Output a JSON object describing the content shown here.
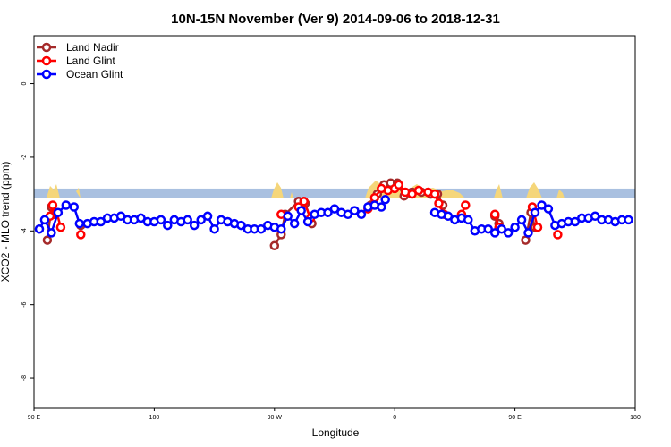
{
  "chart_data": {
    "type": "line",
    "title": "10N-15N November (Ver 9)   2014-09-06 to 2018-12-31",
    "xlabel": "Longitude",
    "ylabel": "XCO2 - MLO trend (ppm)",
    "x_ticks": [
      {
        "value": 0,
        "label": "90 E"
      },
      {
        "value": 90,
        "label": "180"
      },
      {
        "value": 180,
        "label": "90 W"
      },
      {
        "value": 270,
        "label": "0"
      },
      {
        "value": 360,
        "label": "90 E"
      },
      {
        "value": 450,
        "label": "180"
      }
    ],
    "y_ticks": [
      0,
      -2,
      -4,
      -6,
      -8
    ],
    "xlim": [
      0,
      450
    ],
    "ylim": [
      -8.8,
      1.3
    ],
    "band": {
      "ymin": -3.1,
      "ymax": -2.85,
      "color": "#a9c0e0"
    },
    "land_color": "#f5d67a",
    "legend": {
      "placement": "top-left",
      "entries": [
        {
          "label": "Land Nadir",
          "color": "#a52a2a"
        },
        {
          "label": "Land Glint",
          "color": "#ff0000"
        },
        {
          "label": "Ocean Glint",
          "color": "#0000ff"
        }
      ]
    },
    "series": [
      {
        "name": "Land Nadir",
        "color": "#a52a2a",
        "points": [
          [
            10,
            -4.25
          ],
          [
            13,
            -3.35
          ],
          [
            15,
            -3.55
          ],
          [
            35,
            -3.85
          ],
          [
            180,
            -4.4
          ],
          [
            185,
            -4.1
          ],
          [
            188,
            -3.55
          ],
          [
            198,
            -3.2
          ],
          [
            203,
            -3.25
          ],
          [
            208,
            -3.8
          ],
          [
            252,
            -3.3
          ],
          [
            257,
            -3.0
          ],
          [
            262,
            -2.75
          ],
          [
            267,
            -2.7
          ],
          [
            272,
            -2.7
          ],
          [
            277,
            -3.05
          ],
          [
            283,
            -2.95
          ],
          [
            290,
            -2.95
          ],
          [
            297,
            -3.0
          ],
          [
            302,
            -3.0
          ],
          [
            306,
            -3.3
          ],
          [
            345,
            -3.6
          ],
          [
            348,
            -3.8
          ],
          [
            368,
            -4.25
          ],
          [
            372,
            -3.5
          ],
          [
            375,
            -3.9
          ]
        ]
      },
      {
        "name": "Land Glint",
        "color": "#ff0000",
        "points": [
          [
            12,
            -3.6
          ],
          [
            14,
            -3.3
          ],
          [
            17,
            -3.5
          ],
          [
            20,
            -3.9
          ],
          [
            35,
            -4.1
          ],
          [
            185,
            -3.55
          ],
          [
            198,
            -3.35
          ],
          [
            202,
            -3.2
          ],
          [
            207,
            -3.65
          ],
          [
            250,
            -3.4
          ],
          [
            255,
            -3.1
          ],
          [
            260,
            -2.85
          ],
          [
            265,
            -2.9
          ],
          [
            270,
            -2.85
          ],
          [
            273,
            -2.75
          ],
          [
            278,
            -2.95
          ],
          [
            283,
            -3.0
          ],
          [
            288,
            -2.9
          ],
          [
            295,
            -2.95
          ],
          [
            300,
            -3.0
          ],
          [
            303,
            -3.25
          ],
          [
            307,
            -3.55
          ],
          [
            320,
            -3.55
          ],
          [
            323,
            -3.3
          ],
          [
            345,
            -3.55
          ],
          [
            348,
            -3.9
          ],
          [
            373,
            -3.35
          ],
          [
            377,
            -3.9
          ],
          [
            392,
            -4.1
          ]
        ]
      },
      {
        "name": "Ocean Glint",
        "color": "#0000ff",
        "points": [
          [
            4,
            -3.95
          ],
          [
            8,
            -3.7
          ],
          [
            13,
            -4.05
          ],
          [
            18,
            -3.5
          ],
          [
            24,
            -3.3
          ],
          [
            30,
            -3.35
          ],
          [
            34,
            -3.8
          ],
          [
            40,
            -3.8
          ],
          [
            45,
            -3.75
          ],
          [
            50,
            -3.75
          ],
          [
            55,
            -3.65
          ],
          [
            60,
            -3.65
          ],
          [
            65,
            -3.6
          ],
          [
            70,
            -3.7
          ],
          [
            75,
            -3.7
          ],
          [
            80,
            -3.65
          ],
          [
            85,
            -3.75
          ],
          [
            90,
            -3.75
          ],
          [
            95,
            -3.7
          ],
          [
            100,
            -3.85
          ],
          [
            105,
            -3.7
          ],
          [
            110,
            -3.75
          ],
          [
            115,
            -3.7
          ],
          [
            120,
            -3.85
          ],
          [
            125,
            -3.7
          ],
          [
            130,
            -3.6
          ],
          [
            135,
            -3.95
          ],
          [
            140,
            -3.7
          ],
          [
            145,
            -3.75
          ],
          [
            150,
            -3.8
          ],
          [
            155,
            -3.85
          ],
          [
            160,
            -3.95
          ],
          [
            165,
            -3.95
          ],
          [
            170,
            -3.95
          ],
          [
            175,
            -3.85
          ],
          [
            180,
            -3.9
          ],
          [
            185,
            -3.95
          ],
          [
            190,
            -3.6
          ],
          [
            195,
            -3.8
          ],
          [
            200,
            -3.45
          ],
          [
            205,
            -3.75
          ],
          [
            210,
            -3.55
          ],
          [
            215,
            -3.5
          ],
          [
            220,
            -3.5
          ],
          [
            225,
            -3.4
          ],
          [
            230,
            -3.5
          ],
          [
            235,
            -3.55
          ],
          [
            240,
            -3.45
          ],
          [
            245,
            -3.55
          ],
          [
            250,
            -3.35
          ],
          [
            255,
            -3.3
          ],
          [
            260,
            -3.35
          ],
          [
            263,
            -3.15
          ],
          [
            300,
            -3.5
          ],
          [
            305,
            -3.55
          ],
          [
            310,
            -3.6
          ],
          [
            315,
            -3.7
          ],
          [
            320,
            -3.65
          ],
          [
            325,
            -3.7
          ],
          [
            330,
            -4.0
          ],
          [
            335,
            -3.95
          ],
          [
            340,
            -3.95
          ],
          [
            345,
            -4.05
          ],
          [
            350,
            -3.95
          ],
          [
            355,
            -4.05
          ],
          [
            360,
            -3.9
          ],
          [
            365,
            -3.7
          ],
          [
            370,
            -4.05
          ],
          [
            375,
            -3.5
          ],
          [
            380,
            -3.3
          ],
          [
            385,
            -3.4
          ],
          [
            390,
            -3.85
          ],
          [
            395,
            -3.8
          ],
          [
            400,
            -3.75
          ],
          [
            405,
            -3.75
          ],
          [
            410,
            -3.65
          ],
          [
            415,
            -3.65
          ],
          [
            420,
            -3.6
          ],
          [
            425,
            -3.7
          ],
          [
            430,
            -3.7
          ],
          [
            435,
            -3.75
          ],
          [
            440,
            -3.7
          ],
          [
            445,
            -3.7
          ]
        ]
      }
    ]
  }
}
